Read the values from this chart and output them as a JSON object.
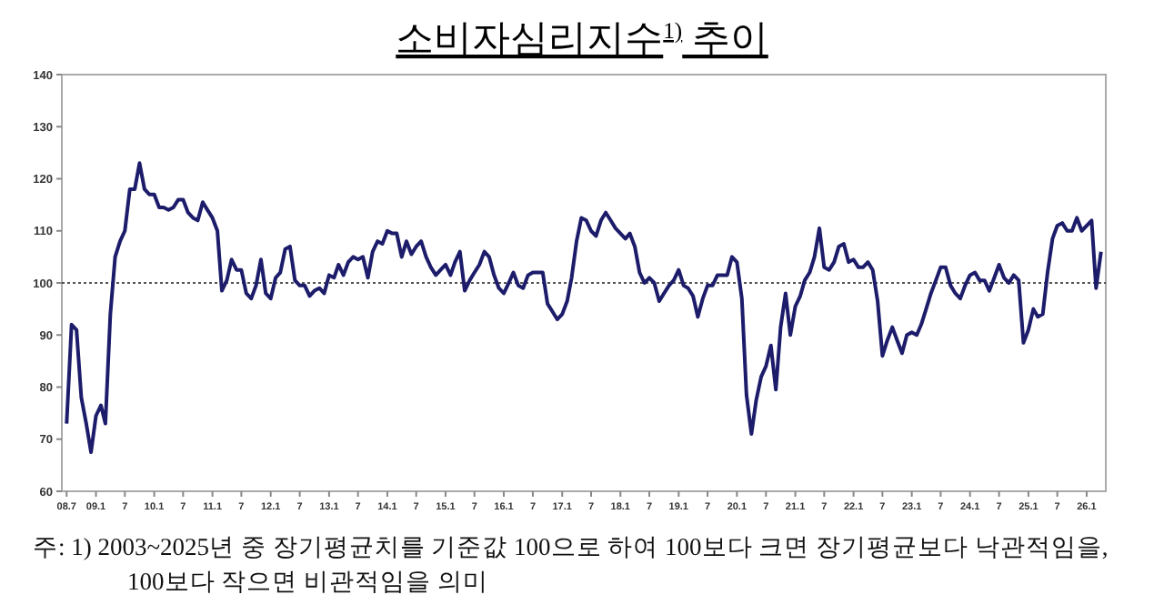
{
  "chart_data": {
    "type": "line",
    "title": "소비자심리지수$^{1)}$ 추이",
    "annotations": [
      "주: 1) 2003~2025년 중 장기평균치를 기준값 100으로 하여 100보다 크면 장기평균보다 낙관적임을, 100보다 작으면 비관적임을 의미"
    ],
    "x": [
      "2008-07",
      "2008-08",
      "2008-09",
      "2008-10",
      "2008-11",
      "2008-12",
      "2009-01",
      "2009-02",
      "2009-03",
      "2009-04",
      "2009-05",
      "2009-06",
      "2009-07",
      "2009-08",
      "2009-09",
      "2009-10",
      "2009-11",
      "2009-12",
      "2010-01",
      "2010-02",
      "2010-03",
      "2010-04",
      "2010-05",
      "2010-06",
      "2010-07",
      "2010-08",
      "2010-09",
      "2010-10",
      "2010-11",
      "2010-12",
      "2011-01",
      "2011-02",
      "2011-03",
      "2011-04",
      "2011-05",
      "2011-06",
      "2011-07",
      "2011-08",
      "2011-09",
      "2011-10",
      "2011-11",
      "2011-12",
      "2012-01",
      "2012-02",
      "2012-03",
      "2012-04",
      "2012-05",
      "2012-06",
      "2012-07",
      "2012-08",
      "2012-09",
      "2012-10",
      "2012-11",
      "2012-12",
      "2013-01",
      "2013-02",
      "2013-03",
      "2013-04",
      "2013-05",
      "2013-06",
      "2013-07",
      "2013-08",
      "2013-09",
      "2013-10",
      "2013-11",
      "2013-12",
      "2014-01",
      "2014-02",
      "2014-03",
      "2014-04",
      "2014-05",
      "2014-06",
      "2014-07",
      "2014-08",
      "2014-09",
      "2014-10",
      "2014-11",
      "2014-12",
      "2015-01",
      "2015-02",
      "2015-03",
      "2015-04",
      "2015-05",
      "2015-06",
      "2015-07",
      "2015-08",
      "2015-09",
      "2015-10",
      "2015-11",
      "2015-12",
      "2016-01",
      "2016-02",
      "2016-03",
      "2016-04",
      "2016-05",
      "2016-06",
      "2016-07",
      "2016-08",
      "2016-09",
      "2016-10",
      "2016-11",
      "2016-12",
      "2017-01",
      "2017-02",
      "2017-03",
      "2017-04",
      "2017-05",
      "2017-06",
      "2017-07",
      "2017-08",
      "2017-09",
      "2017-10",
      "2017-11",
      "2017-12",
      "2018-01",
      "2018-02",
      "2018-03",
      "2018-04",
      "2018-05",
      "2018-06",
      "2018-07",
      "2018-08",
      "2018-09",
      "2018-10",
      "2018-11",
      "2018-12",
      "2019-01",
      "2019-02",
      "2019-03",
      "2019-04",
      "2019-05",
      "2019-06",
      "2019-07",
      "2019-08",
      "2019-09",
      "2019-10",
      "2019-11",
      "2019-12",
      "2020-01",
      "2020-02",
      "2020-03",
      "2020-04",
      "2020-05",
      "2020-06",
      "2020-07",
      "2020-08",
      "2020-09",
      "2020-10",
      "2020-11",
      "2020-12",
      "2021-01",
      "2021-02",
      "2021-03",
      "2021-04",
      "2021-05",
      "2021-06",
      "2021-07",
      "2021-08",
      "2021-09",
      "2021-10",
      "2021-11",
      "2021-12",
      "2022-01",
      "2022-02",
      "2022-03",
      "2022-04",
      "2022-05",
      "2022-06",
      "2022-07",
      "2022-08",
      "2022-09",
      "2022-10",
      "2022-11",
      "2022-12",
      "2023-01",
      "2023-02",
      "2023-03",
      "2023-04",
      "2023-05",
      "2023-06",
      "2023-07",
      "2023-08",
      "2023-09",
      "2023-10",
      "2023-11",
      "2023-12",
      "2024-01",
      "2024-02",
      "2024-03",
      "2024-04",
      "2024-05",
      "2024-06",
      "2024-07",
      "2024-08",
      "2024-09",
      "2024-10",
      "2024-11",
      "2024-12",
      "2025-01",
      "2025-02",
      "2025-03",
      "2025-04",
      "2025-05",
      "2025-06",
      "2025-07",
      "2025-08",
      "2025-09",
      "2025-10",
      "2025-11",
      "2025-12",
      "2026-01",
      "2026-02",
      "2026-03",
      "2026-04"
    ],
    "series": [
      {
        "color": "#1c1c6b",
        "values": [
          73,
          92,
          91,
          78,
          73,
          67.5,
          74.5,
          76.5,
          73,
          94,
          105,
          108,
          110,
          118,
          118,
          123,
          118,
          117,
          117,
          114.5,
          114.5,
          114,
          114.5,
          116,
          116,
          113.5,
          112.5,
          112,
          115.5,
          114,
          112.5,
          110,
          98.5,
          100.5,
          104.5,
          102.5,
          102.5,
          98,
          97,
          99.5,
          104.5,
          98,
          97,
          101,
          102,
          106.5,
          107,
          100.5,
          99.5,
          99.5,
          97.5,
          98.5,
          99,
          98,
          101.5,
          101,
          103.5,
          101.5,
          104,
          105,
          104.5,
          105,
          101,
          106,
          108,
          107.5,
          110,
          109.5,
          109.5,
          105,
          108,
          105.5,
          107,
          108,
          105,
          103,
          101.5,
          102.5,
          103.5,
          101.5,
          104,
          106,
          98.5,
          100.5,
          102,
          103.5,
          106,
          105,
          101.5,
          99,
          98,
          100,
          102,
          99.5,
          99,
          101.5,
          102,
          102,
          102,
          96,
          94.5,
          93,
          94,
          96.5,
          101,
          108,
          112.5,
          112,
          110,
          109,
          112,
          113.5,
          112,
          110.5,
          109.5,
          108.5,
          109.5,
          107,
          102,
          100,
          101,
          100,
          96.5,
          98,
          99.5,
          100.5,
          102.5,
          99.5,
          99,
          97.5,
          93.5,
          97,
          99.5,
          99.5,
          101.5,
          101.5,
          101.5,
          105,
          104,
          97,
          78.5,
          71,
          77.5,
          82,
          84,
          88,
          79.5,
          91.5,
          98,
          90,
          95.5,
          97.5,
          100.5,
          102,
          105,
          110.5,
          103,
          102.5,
          104,
          107,
          107.5,
          104,
          104.5,
          103,
          103,
          104,
          102.5,
          96.5,
          86,
          89,
          91.5,
          89,
          86.5,
          90,
          90.5,
          90,
          92,
          95,
          98,
          100.5,
          103,
          103,
          99.5,
          98,
          97,
          99.5,
          101.5,
          102,
          100.5,
          100.5,
          98.5,
          101,
          103.5,
          101,
          100,
          101.5,
          100.5,
          88.5,
          91,
          95,
          93.5,
          94,
          102,
          108.5,
          111,
          111.5,
          110,
          110,
          112.5,
          110,
          111,
          112,
          99,
          106
        ]
      }
    ],
    "xlim": [
      "2008-06",
      "2026-05"
    ],
    "xticks": [
      {
        "value": "2008-07",
        "label": "08.7"
      },
      {
        "value": "2009-01",
        "label": "09.1"
      },
      {
        "value": "2009-07",
        "label": "7"
      },
      {
        "value": "2010-01",
        "label": "10.1"
      },
      {
        "value": "2010-07",
        "label": "7"
      },
      {
        "value": "2011-01",
        "label": "11.1"
      },
      {
        "value": "2011-07",
        "label": "7"
      },
      {
        "value": "2012-01",
        "label": "12.1"
      },
      {
        "value": "2012-07",
        "label": "7"
      },
      {
        "value": "2013-01",
        "label": "13.1"
      },
      {
        "value": "2013-07",
        "label": "7"
      },
      {
        "value": "2014-01",
        "label": "14.1"
      },
      {
        "value": "2014-07",
        "label": "7"
      },
      {
        "value": "2015-01",
        "label": "15.1"
      },
      {
        "value": "2015-07",
        "label": "7"
      },
      {
        "value": "2016-01",
        "label": "16.1"
      },
      {
        "value": "2016-07",
        "label": "7"
      },
      {
        "value": "2017-01",
        "label": "17.1"
      },
      {
        "value": "2017-07",
        "label": "7"
      },
      {
        "value": "2018-01",
        "label": "18.1"
      },
      {
        "value": "2018-07",
        "label": "7"
      },
      {
        "value": "2019-01",
        "label": "19.1"
      },
      {
        "value": "2019-07",
        "label": "7"
      },
      {
        "value": "2020-01",
        "label": "20.1"
      },
      {
        "value": "2020-07",
        "label": "7"
      },
      {
        "value": "2021-01",
        "label": "21.1"
      },
      {
        "value": "2021-07",
        "label": "7"
      },
      {
        "value": "2022-01",
        "label": "22.1"
      },
      {
        "value": "2022-07",
        "label": "7"
      },
      {
        "value": "2023-01",
        "label": "23.1"
      },
      {
        "value": "2023-07",
        "label": "7"
      },
      {
        "value": "2024-01",
        "label": "24.1"
      },
      {
        "value": "2024-07",
        "label": "7"
      },
      {
        "value": "2025-01",
        "label": "25.1"
      },
      {
        "value": "2025-07",
        "label": "7"
      },
      {
        "value": "2026-01",
        "label": "26.1"
      }
    ],
    "ylim": [
      60,
      140
    ],
    "yticks": [
      60,
      70,
      80,
      90,
      100,
      110,
      120,
      130,
      140
    ],
    "ref_lines": [
      {
        "axis": "y",
        "value": 100,
        "line_style": "dotted",
        "color": "#555555"
      }
    ],
    "grid": false,
    "marker": "none",
    "line_style": "solid"
  }
}
